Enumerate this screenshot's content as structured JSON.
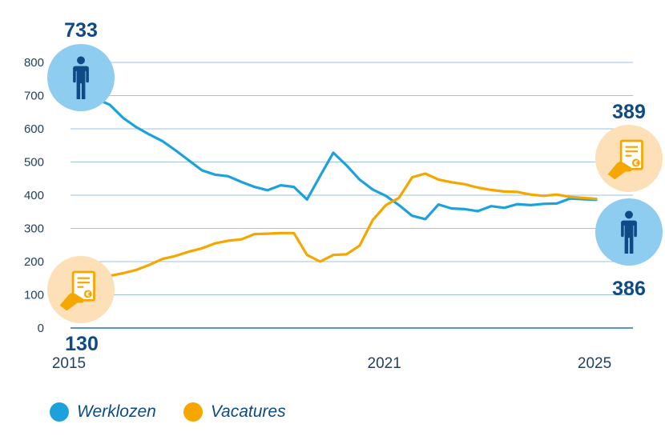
{
  "chart_data": {
    "type": "line",
    "title": "",
    "xlabel": "",
    "ylabel": "",
    "ylim": [
      0,
      800
    ],
    "yticks": [
      0,
      100,
      200,
      300,
      400,
      500,
      600,
      700,
      800
    ],
    "xlim": [
      2015,
      2025.7
    ],
    "xtick_labels": [
      {
        "label": "2015",
        "x": 2015
      },
      {
        "label": "2021",
        "x": 2021
      },
      {
        "label": "2025",
        "x": 2025
      }
    ],
    "series": [
      {
        "name": "Werklozen",
        "color": "#1ca1dc",
        "points": [
          [
            2015.25,
            733
          ],
          [
            2015.5,
            690
          ],
          [
            2015.75,
            672
          ],
          [
            2016.0,
            633
          ],
          [
            2016.25,
            605
          ],
          [
            2016.5,
            583
          ],
          [
            2016.75,
            563
          ],
          [
            2017.0,
            535
          ],
          [
            2017.25,
            505
          ],
          [
            2017.5,
            475
          ],
          [
            2017.75,
            462
          ],
          [
            2018.0,
            457
          ],
          [
            2018.25,
            440
          ],
          [
            2018.5,
            425
          ],
          [
            2018.75,
            415
          ],
          [
            2019.0,
            430
          ],
          [
            2019.25,
            425
          ],
          [
            2019.5,
            387
          ],
          [
            2019.75,
            458
          ],
          [
            2020.0,
            528
          ],
          [
            2020.25,
            490
          ],
          [
            2020.5,
            447
          ],
          [
            2020.75,
            417
          ],
          [
            2021.0,
            398
          ],
          [
            2021.25,
            370
          ],
          [
            2021.5,
            338
          ],
          [
            2021.75,
            328
          ],
          [
            2022.0,
            372
          ],
          [
            2022.25,
            360
          ],
          [
            2022.5,
            358
          ],
          [
            2022.75,
            352
          ],
          [
            2023.0,
            367
          ],
          [
            2023.25,
            362
          ],
          [
            2023.5,
            373
          ],
          [
            2023.75,
            370
          ],
          [
            2024.0,
            374
          ],
          [
            2024.25,
            375
          ],
          [
            2024.5,
            390
          ],
          [
            2024.75,
            388
          ],
          [
            2025.0,
            386
          ]
        ]
      },
      {
        "name": "Vacatures",
        "color": "#f5a700",
        "points": [
          [
            2015.25,
            130
          ],
          [
            2015.5,
            150
          ],
          [
            2015.75,
            157
          ],
          [
            2016.0,
            165
          ],
          [
            2016.25,
            175
          ],
          [
            2016.5,
            190
          ],
          [
            2016.75,
            208
          ],
          [
            2017.0,
            217
          ],
          [
            2017.25,
            230
          ],
          [
            2017.5,
            240
          ],
          [
            2017.75,
            255
          ],
          [
            2018.0,
            263
          ],
          [
            2018.25,
            267
          ],
          [
            2018.5,
            283
          ],
          [
            2018.75,
            284
          ],
          [
            2019.0,
            286
          ],
          [
            2019.25,
            286
          ],
          [
            2019.5,
            220
          ],
          [
            2019.75,
            200
          ],
          [
            2020.0,
            220
          ],
          [
            2020.25,
            222
          ],
          [
            2020.5,
            248
          ],
          [
            2020.75,
            325
          ],
          [
            2021.0,
            370
          ],
          [
            2021.25,
            392
          ],
          [
            2021.5,
            454
          ],
          [
            2021.75,
            465
          ],
          [
            2022.0,
            447
          ],
          [
            2022.25,
            439
          ],
          [
            2022.5,
            433
          ],
          [
            2022.75,
            423
          ],
          [
            2023.0,
            416
          ],
          [
            2023.25,
            411
          ],
          [
            2023.5,
            410
          ],
          [
            2023.75,
            402
          ],
          [
            2024.0,
            398
          ],
          [
            2024.25,
            402
          ],
          [
            2024.5,
            395
          ],
          [
            2024.75,
            392
          ],
          [
            2025.0,
            389
          ]
        ]
      }
    ],
    "annotations": [
      {
        "text": "733",
        "series": "Werklozen",
        "position": "start",
        "icon": "person-icon"
      },
      {
        "text": "130",
        "series": "Vacatures",
        "position": "start",
        "icon": "vacancy-document-icon"
      },
      {
        "text": "389",
        "series": "Vacatures",
        "position": "end",
        "icon": "vacancy-document-icon"
      },
      {
        "text": "386",
        "series": "Werklozen",
        "position": "end",
        "icon": "person-icon"
      }
    ]
  },
  "legend": {
    "items": [
      {
        "label": "Werklozen",
        "color": "#1ca1dc"
      },
      {
        "label": "Vacatures",
        "color": "#f5a700"
      }
    ]
  }
}
